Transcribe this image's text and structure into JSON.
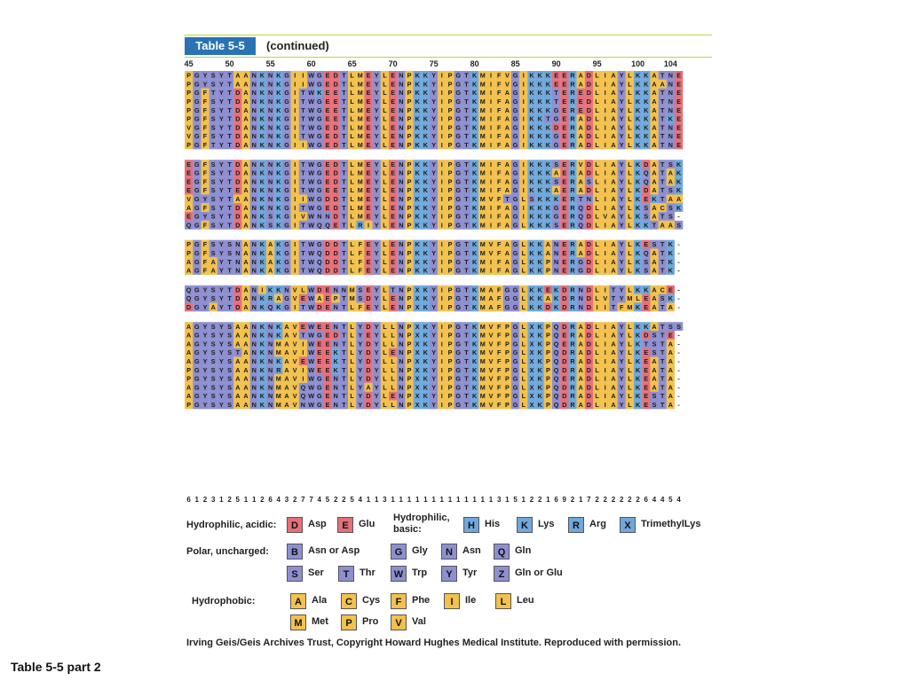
{
  "header": {
    "table_label": "Table 5-5",
    "subtitle": "(continued)"
  },
  "position_labels": [
    "45",
    "50",
    "55",
    "60",
    "65",
    "70",
    "75",
    "80",
    "85",
    "90",
    "95",
    "100",
    "104"
  ],
  "colors": {
    "acidic": "#e5707a",
    "basic": "#6fa8dc",
    "polar": "#8e8fd0",
    "hydrophobic": "#f2c14e",
    "blank": "#ffffff"
  },
  "alignment": {
    "groups": [
      [
        "PGYSYTAANKNKGIIWGEDTLMEYLENPKKYIPGTKMIFVGIKKKEERADLIAYLKKATNE",
        "PGYSYTAANKNKGIIWGEDTLMEYLENPKKYIPGTKMIFVGIKKKEERADLIAYLKKAANE",
        "PGFTYTDANKNKGITWKEETLMEYLENPKKYIPGTKMIFAGIKKKTEREDLIAYLKKATNE",
        "PGFSYTDANKNKGITWGEETLMEYLENPKKYIPGTKMIFAGIKKKTEREDLIAYLKKATNE",
        "PGFSYTDANKNKGITWGEETLMEYLENPKKYIPGTKMIFAGIKKKGEREDLIAYLKKATNE",
        "PGFSYTDANKNKGITWGEETLMEYLENPKKYIPGTKMIFAGIKKTGERADLIAYLKKATKE",
        "VGFSYTDANKNKGITWGEDTLMEYLENPKKYIPGTKMIFAGIKKKDERADLIAYLKKATNE",
        "VGFSYTDANKNKGITWGEDTLMEYLENPKKYIPGTKMIFAGIKKKGERADLIAYLKKATNE",
        "PGFTYTDANKNKGIIWGEDTLMEYLENPKKYIPGTKMIFAGIKKKGERADLIAYLKKATNE"
      ],
      [
        "EGFSYTDANKNKGITWGEDTLMEYLENPKKYIPGTKMIFAGIKKKSERVDLIAYLKDATSK",
        "EGFSYTDANKNKGITWGEDTLMEYLENPKKYIPGTKMIFAGIKKKAERADLIAYLKQATAK",
        "EGFSYTDANKNKGITWGEDTLMEYLENPKKYIPGTKMIFAGIKKKSERASLIAYLKQATAK",
        "EGFSYTEANKNKGITWGEETLMEYLENPKKYIPGTKMIFAGIKKKAERADLIAYLKDATSK",
        "VGYSYTAANKNKGIIWGDDTLMEYLENPKKYIPGTKMVFTGLSKKKERTNLIAYLKEKTAA",
        "AGFSYTDANKNKGITWGEDTLMEYLENPKKYIPGTKMIFAGIKKKGERQDLIAYLKSACSK",
        "EGYSYTDANKSKGIVWNNDTLMEYLENPKKYIPGTKMIFAGIKKKGERQDLVAYLKSATS-",
        "QGFSYTDANKSKGITWQQETLRIYLENPKKYIPGTKMIFAGLKKKSERQDLIAYLKKTAAS"
      ],
      [
        "PGFSYSNANKAKGITWGDDTLFEYLENPKKYIPGTKMVFAGLKKANERADLIAYLKESTK-",
        "PGFSYSNANKAKGITWQDDTLFEYLENPKKYIPGTKMVFAGLKKANERADLIAYLKQATK-",
        "AGFAYTNANKAKGITWQDDTLFEYLENPKKYIPGTKMIFAGLKKPNERGDLIAYLKSATK-",
        "AGFAYTNANKAKGITWQDDTLFEYLENPKKYIPGTKMIFAGLKKPNERGDLIAYLKSATK-"
      ],
      [
        "QGYSYTDANIKKNVLWDENNMSEYLTNPXKYIPGTKMAFGGLKKEKDRNDLITYLKKACE-",
        "QGYSYTDANKRAGVEWAEPTMSDYLENPXKYIPGTKMAFGGLKKAKDRNDLVTYMLEASK-",
        "DGYAYTDANKQKGITWDENTLFEYLENPXKYIPGTKMAFGGLKKDKDRNDIITFMKEATA-"
      ],
      [
        "AGYSYSAANKNKAVEWEENTLYDYLLNPXKYIPGTKMVFPGLXKPQDRADLIAYLKKATSS",
        "AGYSYSAANKNKAVTWGEDTLYEYLLNPXKYIPGTKMVFPGLXKPQERADLIAYLKDSTE-",
        "AGYSYSAANKNMAVIWEENTLYDYLLNPXKYIPGTKMVFPGLXKPQERADLIAYLKTSTA-",
        "AGYSYSTANKNMAVIWEEKTLYDYLENPXKYIPGTKMVFPGLXKPQDRADLIAYLKESTA-",
        "AGYSYSAANKNKAVEWEEKTLYDYLLNPXKYIPGTKMVFPGLXKPQDRADLIAYLKEATA-",
        "PGYSYSAANKNRAVIWEEKTLYDYLLNPXKYIPGTKMVFPGLXKPQDRADLIAYLKEATA-",
        "PGYSYSAANKNMAVIWGENTLYDYLLNPXKYIPGTKMVFPGLXKPQERADLIAYLKEATA-",
        "AGYSYSAANKNMAVQWGENTLYAYLLNPXKYIPGTKMVFPGLXKPQDRADLIAYLKEATA-",
        "AGYSYSAANKNMAVQWGENTLYDYLENPXKYIPGTKMVFPGLXKPQDRADLIAYLKESTA-",
        "PGYSYSAANKNMAVNWGENTLYDYLLNPXKYIPGTKMVFPGLXKPQDRADLIAYLKESTA-"
      ]
    ],
    "variability_counts": [
      "6",
      "1",
      "2",
      "3",
      "1",
      "2",
      "5",
      "1",
      "1",
      "2",
      "6",
      "4",
      "3",
      "2",
      "7",
      "7",
      "4",
      "5",
      "2",
      "2",
      "5",
      "4",
      "1",
      "1",
      "3",
      "1",
      "1",
      "1",
      "1",
      "1",
      "1",
      "1",
      "1",
      "1",
      "1",
      "1",
      "1",
      "1",
      "3",
      "1",
      "5",
      "1",
      "2",
      "2",
      "1",
      "6",
      "9",
      "2",
      "1",
      "7",
      "2",
      "2",
      "2",
      "2",
      "2",
      "2",
      "6",
      "4",
      "4",
      "5",
      "4"
    ]
  },
  "legend": {
    "hydrophilic_acidic": {
      "label": "Hydrophilic, acidic:",
      "items": [
        {
          "code": "D",
          "name": "Asp"
        },
        {
          "code": "E",
          "name": "Glu"
        }
      ]
    },
    "hydrophilic_basic": {
      "label": "Hydrophilic, basic:",
      "items": [
        {
          "code": "H",
          "name": "His"
        },
        {
          "code": "K",
          "name": "Lys"
        },
        {
          "code": "R",
          "name": "Arg"
        },
        {
          "code": "X",
          "name": "TrimethylLys"
        }
      ]
    },
    "polar_uncharged": {
      "label": "Polar, uncharged:",
      "items": [
        {
          "code": "B",
          "name": "Asn or Asp"
        },
        {
          "code": "G",
          "name": "Gly"
        },
        {
          "code": "N",
          "name": "Asn"
        },
        {
          "code": "Q",
          "name": "Gln"
        },
        {
          "code": "S",
          "name": "Ser"
        },
        {
          "code": "T",
          "name": "Thr"
        },
        {
          "code": "W",
          "name": "Trp"
        },
        {
          "code": "Y",
          "name": "Tyr"
        },
        {
          "code": "Z",
          "name": "Gln or Glu"
        }
      ]
    },
    "hydrophobic": {
      "label": "Hydrophobic:",
      "items": [
        {
          "code": "A",
          "name": "Ala"
        },
        {
          "code": "C",
          "name": "Cys"
        },
        {
          "code": "F",
          "name": "Phe"
        },
        {
          "code": "I",
          "name": "Ile"
        },
        {
          "code": "L",
          "name": "Leu"
        },
        {
          "code": "M",
          "name": "Met"
        },
        {
          "code": "P",
          "name": "Pro"
        },
        {
          "code": "V",
          "name": "Val"
        }
      ]
    }
  },
  "credit": "Irving Geis/Geis Archives Trust, Copyright Howard Hughes Medical Institute. Reproduced with permission.",
  "caption": "Table 5-5 part 2"
}
